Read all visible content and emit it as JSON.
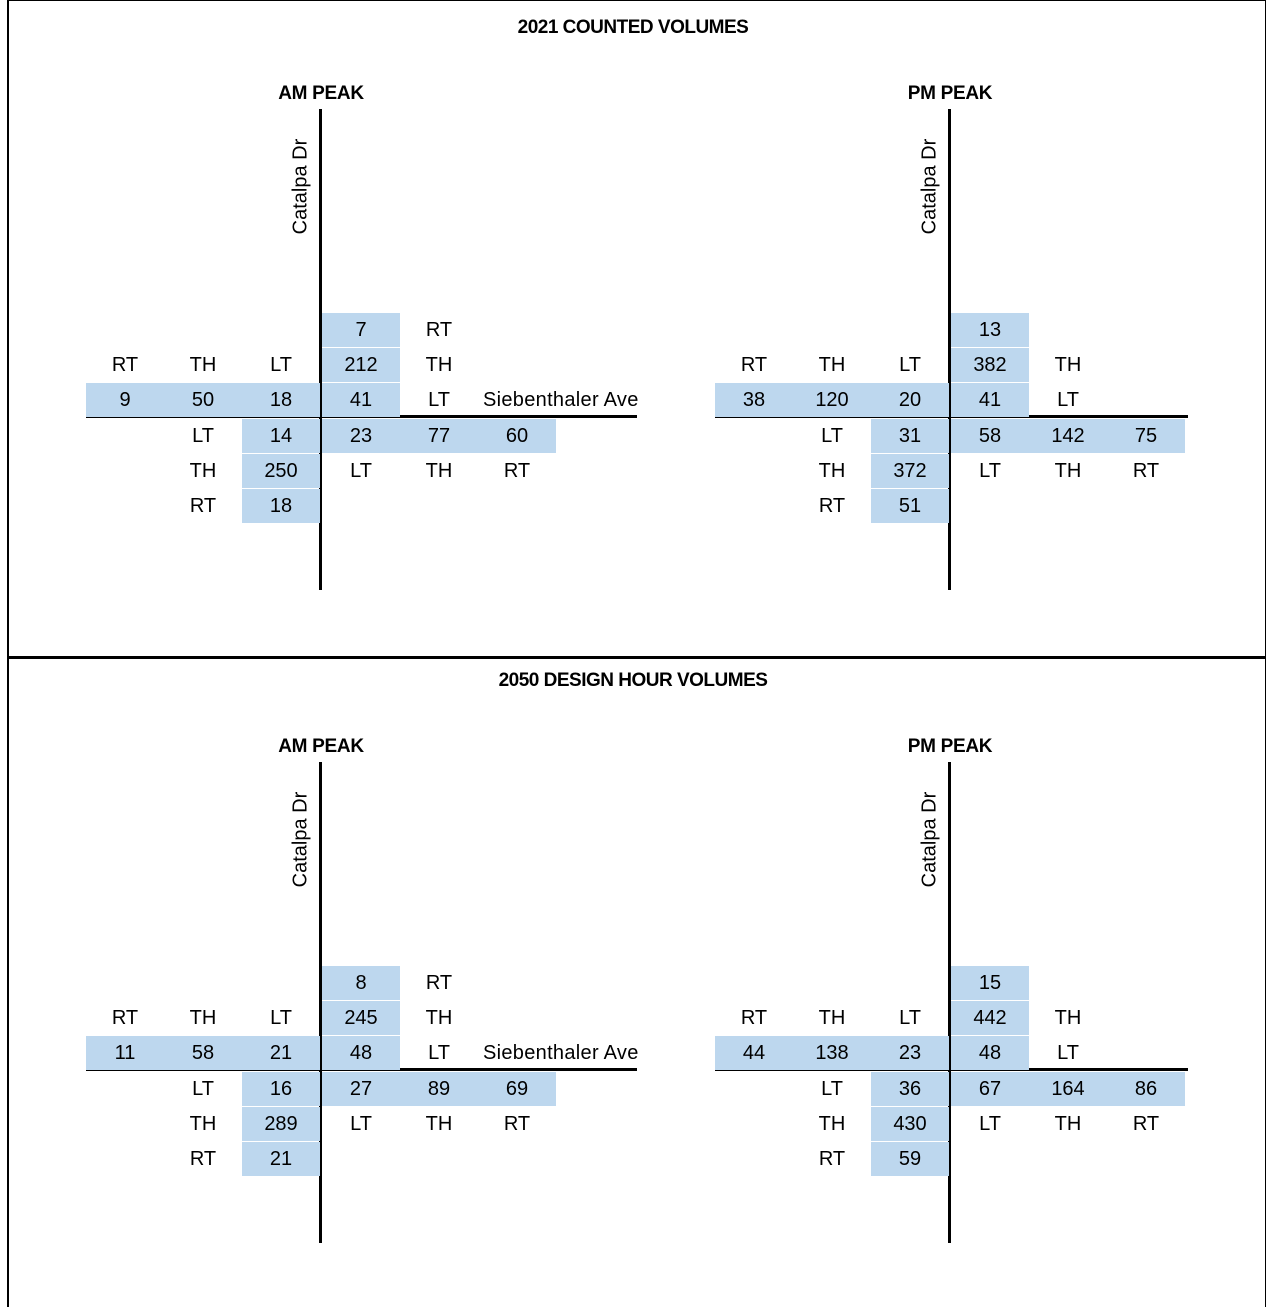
{
  "sections": [
    {
      "title": "2021 COUNTED VOLUMES",
      "diagrams": [
        {
          "peak": "AM PEAK",
          "street_ns": "Catalpa Dr",
          "street_ew": "Siebenthaler Ave",
          "southbound": {
            "rt": "7",
            "th": "212",
            "lt": "41",
            "labels": {
              "rt": "RT",
              "th": "TH",
              "lt": "LT"
            }
          },
          "eastbound": {
            "rt": "9",
            "th": "50",
            "lt": "18",
            "labels": {
              "rt": "RT",
              "th": "TH",
              "lt": "LT"
            }
          },
          "northbound": {
            "lt": "14",
            "th": "250",
            "rt": "18",
            "labels": {
              "lt": "LT",
              "th": "TH",
              "rt": "RT"
            }
          },
          "westbound": {
            "lt": "23",
            "th": "77",
            "rt": "60",
            "labels": {
              "lt": "LT",
              "th": "TH",
              "rt": "RT"
            }
          }
        },
        {
          "peak": "PM PEAK",
          "street_ns": "Catalpa Dr",
          "street_ew": "",
          "southbound": {
            "rt": "13",
            "th": "382",
            "lt": "41",
            "labels": {
              "rt": "",
              "th": "TH",
              "lt": "LT"
            }
          },
          "eastbound": {
            "rt": "38",
            "th": "120",
            "lt": "20",
            "labels": {
              "rt": "RT",
              "th": "TH",
              "lt": "LT"
            }
          },
          "northbound": {
            "lt": "31",
            "th": "372",
            "rt": "51",
            "labels": {
              "lt": "LT",
              "th": "TH",
              "rt": "RT"
            }
          },
          "westbound": {
            "lt": "58",
            "th": "142",
            "rt": "75",
            "labels": {
              "lt": "LT",
              "th": "TH",
              "rt": "RT"
            }
          }
        }
      ]
    },
    {
      "title": "2050 DESIGN HOUR VOLUMES",
      "diagrams": [
        {
          "peak": "AM PEAK",
          "street_ns": "Catalpa Dr",
          "street_ew": "Siebenthaler Ave",
          "southbound": {
            "rt": "8",
            "th": "245",
            "lt": "48",
            "labels": {
              "rt": "RT",
              "th": "TH",
              "lt": "LT"
            }
          },
          "eastbound": {
            "rt": "11",
            "th": "58",
            "lt": "21",
            "labels": {
              "rt": "RT",
              "th": "TH",
              "lt": "LT"
            }
          },
          "northbound": {
            "lt": "16",
            "th": "289",
            "rt": "21",
            "labels": {
              "lt": "LT",
              "th": "TH",
              "rt": "RT"
            }
          },
          "westbound": {
            "lt": "27",
            "th": "89",
            "rt": "69",
            "labels": {
              "lt": "LT",
              "th": "TH",
              "rt": "RT"
            }
          }
        },
        {
          "peak": "PM PEAK",
          "street_ns": "Catalpa Dr",
          "street_ew": "",
          "southbound": {
            "rt": "15",
            "th": "442",
            "lt": "48",
            "labels": {
              "rt": "",
              "th": "TH",
              "lt": "LT"
            }
          },
          "eastbound": {
            "rt": "44",
            "th": "138",
            "lt": "23",
            "labels": {
              "rt": "RT",
              "th": "TH",
              "lt": "LT"
            }
          },
          "northbound": {
            "lt": "36",
            "th": "430",
            "rt": "59",
            "labels": {
              "lt": "LT",
              "th": "TH",
              "rt": "RT"
            }
          },
          "westbound": {
            "lt": "67",
            "th": "164",
            "rt": "86",
            "labels": {
              "lt": "LT",
              "th": "TH",
              "rt": "RT"
            }
          }
        }
      ]
    }
  ],
  "colors": {
    "highlight": "#bdd7ee",
    "line": "#000000"
  }
}
